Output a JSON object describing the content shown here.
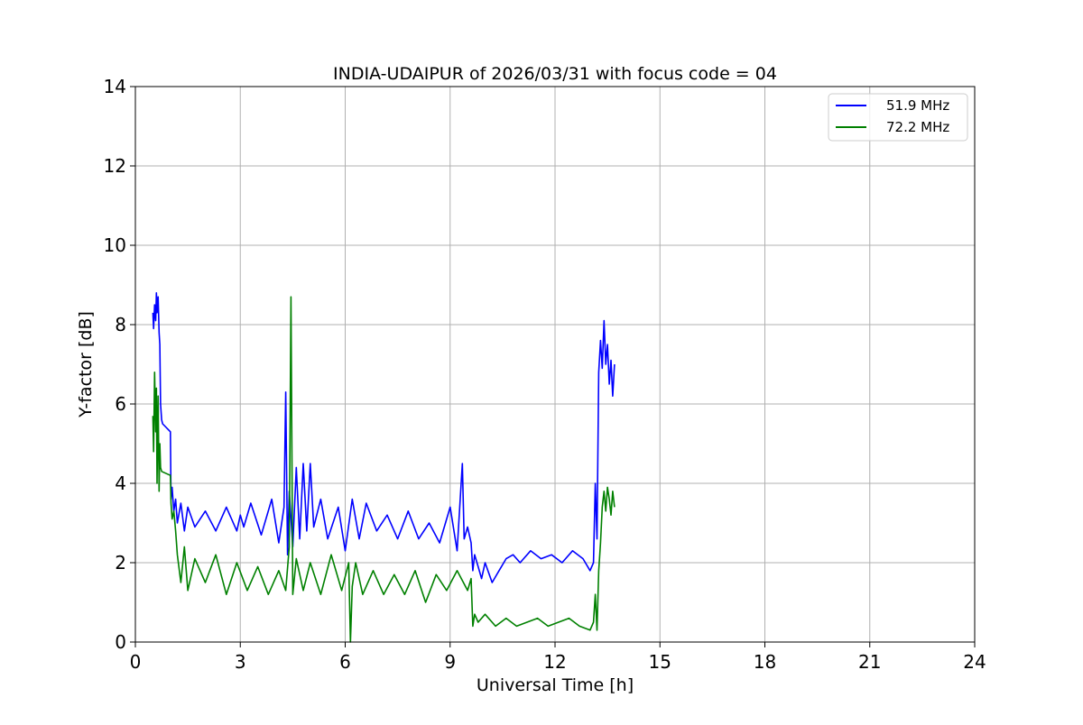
{
  "chart_data": {
    "type": "line",
    "title": "INDIA-UDAIPUR of 2026/03/31 with focus code = 04",
    "xlabel": "Universal Time [h]",
    "ylabel": "Y-factor [dB]",
    "xlim": [
      0,
      24
    ],
    "ylim": [
      0,
      14
    ],
    "xticks": [
      0,
      3,
      6,
      9,
      12,
      15,
      18,
      21,
      24
    ],
    "yticks": [
      0,
      2,
      4,
      6,
      8,
      10,
      12,
      14
    ],
    "grid": true,
    "legend_position": "top-right",
    "series": [
      {
        "name": "51.9 MHz",
        "color": "#0000ff",
        "x": [
          0.5,
          0.52,
          0.55,
          0.58,
          0.6,
          0.62,
          0.65,
          0.68,
          0.7,
          0.72,
          0.75,
          0.78,
          1.0,
          1.02,
          1.05,
          1.1,
          1.15,
          1.2,
          1.3,
          1.4,
          1.5,
          1.7,
          2.0,
          2.3,
          2.6,
          2.9,
          3.0,
          3.1,
          3.3,
          3.6,
          3.9,
          4.1,
          4.25,
          4.3,
          4.35,
          4.4,
          4.5,
          4.6,
          4.7,
          4.8,
          4.9,
          5.0,
          5.1,
          5.3,
          5.5,
          5.8,
          6.0,
          6.2,
          6.4,
          6.6,
          6.9,
          7.2,
          7.5,
          7.8,
          8.1,
          8.4,
          8.7,
          9.0,
          9.2,
          9.35,
          9.4,
          9.5,
          9.6,
          9.65,
          9.7,
          9.8,
          9.9,
          10.0,
          10.2,
          10.4,
          10.6,
          10.8,
          11.0,
          11.3,
          11.6,
          11.9,
          12.2,
          12.5,
          12.8,
          13.0,
          13.1,
          13.15,
          13.2,
          13.25,
          13.3,
          13.35,
          13.4,
          13.45,
          13.5,
          13.55,
          13.6,
          13.65,
          13.7
        ],
        "y": [
          8.3,
          7.9,
          8.5,
          8.1,
          8.8,
          8.3,
          8.7,
          7.8,
          7.5,
          6.0,
          5.6,
          5.5,
          5.3,
          3.6,
          3.9,
          3.3,
          3.6,
          3.0,
          3.5,
          2.8,
          3.4,
          2.9,
          3.3,
          2.8,
          3.4,
          2.8,
          3.2,
          2.9,
          3.5,
          2.7,
          3.6,
          2.5,
          3.4,
          6.3,
          2.2,
          3.8,
          2.4,
          4.4,
          2.6,
          4.5,
          2.8,
          4.5,
          2.9,
          3.6,
          2.6,
          3.4,
          2.3,
          3.6,
          2.6,
          3.5,
          2.8,
          3.2,
          2.6,
          3.3,
          2.6,
          3.0,
          2.5,
          3.4,
          2.3,
          4.5,
          2.6,
          2.9,
          2.5,
          1.8,
          2.2,
          1.9,
          1.6,
          2.0,
          1.5,
          1.8,
          2.1,
          2.2,
          2.0,
          2.3,
          2.1,
          2.2,
          2.0,
          2.3,
          2.1,
          1.8,
          2.0,
          4.0,
          2.6,
          6.8,
          7.6,
          6.9,
          8.1,
          7.0,
          7.5,
          6.5,
          7.1,
          6.2,
          7.0
        ]
      },
      {
        "name": "72.2 MHz",
        "color": "#008000",
        "x": [
          0.5,
          0.52,
          0.55,
          0.58,
          0.6,
          0.62,
          0.65,
          0.68,
          0.7,
          0.72,
          0.75,
          1.0,
          1.02,
          1.05,
          1.1,
          1.15,
          1.2,
          1.3,
          1.4,
          1.5,
          1.7,
          2.0,
          2.3,
          2.6,
          2.9,
          3.2,
          3.5,
          3.8,
          4.1,
          4.3,
          4.4,
          4.45,
          4.5,
          4.6,
          4.8,
          5.0,
          5.3,
          5.6,
          5.9,
          6.1,
          6.15,
          6.2,
          6.3,
          6.5,
          6.8,
          7.1,
          7.4,
          7.7,
          8.0,
          8.3,
          8.6,
          8.9,
          9.2,
          9.5,
          9.6,
          9.65,
          9.7,
          9.8,
          10.0,
          10.3,
          10.6,
          10.9,
          11.2,
          11.5,
          11.8,
          12.1,
          12.4,
          12.7,
          13.0,
          13.1,
          13.15,
          13.2,
          13.25,
          13.3,
          13.35,
          13.4,
          13.45,
          13.5,
          13.55,
          13.6,
          13.65,
          13.7
        ],
        "y": [
          5.7,
          4.8,
          6.8,
          5.3,
          6.4,
          4.0,
          6.2,
          3.8,
          5.0,
          4.4,
          4.3,
          4.2,
          3.5,
          3.1,
          3.3,
          2.8,
          2.2,
          1.5,
          2.4,
          1.3,
          2.1,
          1.5,
          2.2,
          1.2,
          2.0,
          1.3,
          1.9,
          1.2,
          1.8,
          1.3,
          2.4,
          8.7,
          1.2,
          2.1,
          1.3,
          2.0,
          1.2,
          2.2,
          1.3,
          2.0,
          0.0,
          1.4,
          2.0,
          1.2,
          1.8,
          1.2,
          1.7,
          1.2,
          1.8,
          1.0,
          1.7,
          1.3,
          1.8,
          1.3,
          1.6,
          0.4,
          0.7,
          0.5,
          0.7,
          0.4,
          0.6,
          0.4,
          0.5,
          0.6,
          0.4,
          0.5,
          0.6,
          0.4,
          0.3,
          0.5,
          1.2,
          0.3,
          1.8,
          2.5,
          3.4,
          3.8,
          3.3,
          3.9,
          3.6,
          3.2,
          3.8,
          3.4
        ]
      }
    ]
  }
}
